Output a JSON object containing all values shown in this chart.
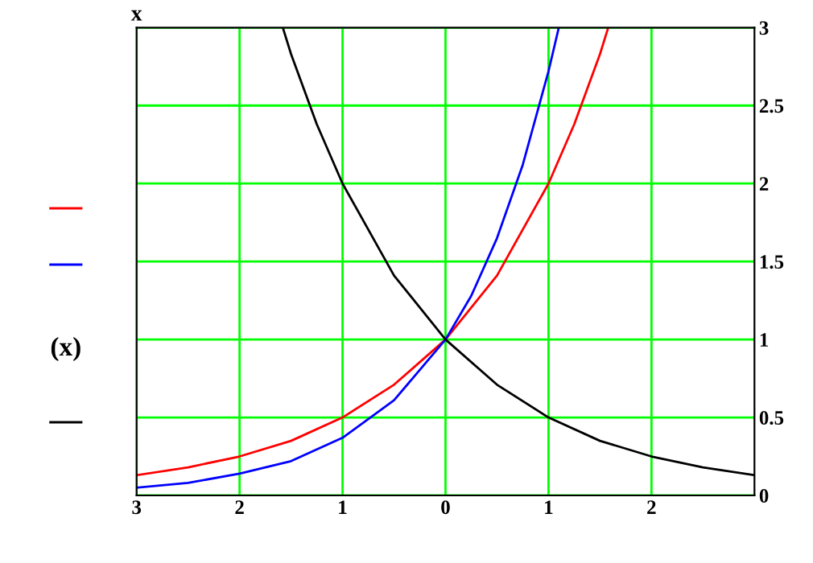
{
  "chart_data": {
    "type": "line",
    "ylabel": "(x)",
    "annotations": [
      "x"
    ],
    "xlim": [
      -3,
      3
    ],
    "xticks": [
      {
        "value": -3,
        "label": "3"
      },
      {
        "value": -2,
        "label": "2"
      },
      {
        "value": -1,
        "label": "1"
      },
      {
        "value": 0,
        "label": "0"
      },
      {
        "value": 1,
        "label": "1"
      },
      {
        "value": 2,
        "label": "2"
      }
    ],
    "ylim": [
      0,
      3
    ],
    "yticks": [
      0,
      {
        "value": 0.5,
        "label": "0.5"
      },
      1,
      {
        "value": 1.5,
        "label": "1.5"
      },
      2,
      {
        "value": 2.5,
        "label": "2.5"
      },
      3
    ],
    "grid": true,
    "series": [
      {
        "color": "#ff0000",
        "x": [
          -3,
          -2.5,
          -2,
          -1.5,
          -1,
          -0.5,
          0,
          0.5,
          1,
          1.25,
          1.5,
          1.58
        ],
        "values": [
          0.13,
          0.18,
          0.25,
          0.35,
          0.5,
          0.71,
          1,
          1.41,
          2,
          2.38,
          2.83,
          3.0
        ]
      },
      {
        "color": "#0000ff",
        "x": [
          -3,
          -2.5,
          -2,
          -1.5,
          -1,
          -0.5,
          0,
          0.25,
          0.5,
          0.75,
          1,
          1.1
        ],
        "values": [
          0.05,
          0.08,
          0.14,
          0.22,
          0.37,
          0.61,
          1,
          1.28,
          1.65,
          2.12,
          2.72,
          3.0
        ]
      },
      {
        "color": "#000000",
        "x": [
          -1.58,
          -1.5,
          -1.25,
          -1,
          -0.5,
          0,
          0.5,
          1,
          1.5,
          2,
          2.5,
          3
        ],
        "values": [
          3.0,
          2.83,
          2.38,
          2,
          1.41,
          1,
          0.71,
          0.5,
          0.35,
          0.25,
          0.18,
          0.13
        ]
      }
    ]
  }
}
